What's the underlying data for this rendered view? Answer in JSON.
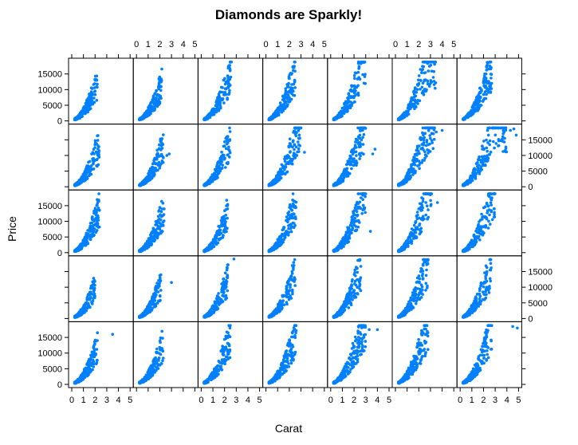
{
  "chart_data": {
    "type": "scatter",
    "title": "Diamonds are Sparkly!",
    "xlabel": "Carat",
    "ylabel": "Price",
    "layout": {
      "columns": 7,
      "rows": 5
    },
    "xlim": [
      0,
      5
    ],
    "ylim": [
      0,
      19000
    ],
    "x_ticks": [
      0,
      1,
      2,
      3,
      4,
      5
    ],
    "y_ticks": [
      0,
      5000,
      10000,
      15000
    ],
    "x_tick_labels": [
      "0",
      "1",
      "2",
      "3",
      "4",
      "5"
    ],
    "y_tick_labels": [
      "0",
      "5000",
      "10000",
      "15000"
    ],
    "point_color": "#0080ff",
    "grid": false,
    "panels": [
      {
        "max_carat": 2.2,
        "outliers": [
          [
            2.0,
            13000
          ]
        ]
      },
      {
        "max_carat": 2.2,
        "outliers": []
      },
      {
        "max_carat": 2.6,
        "outliers": []
      },
      {
        "max_carat": 2.5,
        "outliers": []
      },
      {
        "max_carat": 3.0,
        "outliers": []
      },
      {
        "max_carat": 3.5,
        "outliers": [
          [
            3.1,
            12500
          ]
        ]
      },
      {
        "max_carat": 2.7,
        "outliers": []
      },
      {
        "max_carat": 2.4,
        "outliers": [
          [
            1.8,
            11000
          ]
        ]
      },
      {
        "max_carat": 2.3,
        "outliers": [
          [
            2.8,
            10500
          ],
          [
            2.6,
            10000
          ]
        ]
      },
      {
        "max_carat": 2.5,
        "outliers": []
      },
      {
        "max_carat": 3.0,
        "outliers": [
          [
            3.3,
            11000
          ]
        ]
      },
      {
        "max_carat": 3.0,
        "outliers": [
          [
            3.8,
            12000
          ],
          [
            3.6,
            10500
          ]
        ]
      },
      {
        "max_carat": 3.4,
        "outliers": [
          [
            4.0,
            18000
          ],
          [
            3.5,
            17500
          ]
        ]
      },
      {
        "max_carat": 4.0,
        "outliers": [
          [
            4.6,
            18500
          ],
          [
            4.3,
            18000
          ],
          [
            4.8,
            16500
          ]
        ]
      },
      {
        "max_carat": 2.4,
        "outliers": []
      },
      {
        "max_carat": 2.4,
        "outliers": []
      },
      {
        "max_carat": 2.3,
        "outliers": []
      },
      {
        "max_carat": 2.6,
        "outliers": []
      },
      {
        "max_carat": 3.0,
        "outliers": [
          [
            3.4,
            6800
          ]
        ]
      },
      {
        "max_carat": 3.1,
        "outliers": [
          [
            3.6,
            16000
          ]
        ]
      },
      {
        "max_carat": 3.0,
        "outliers": []
      },
      {
        "max_carat": 2.0,
        "outliers": []
      },
      {
        "max_carat": 2.1,
        "outliers": [
          [
            3.0,
            11500
          ]
        ]
      },
      {
        "max_carat": 2.3,
        "outliers": [
          [
            2.8,
            19000
          ]
        ]
      },
      {
        "max_carat": 2.5,
        "outliers": []
      },
      {
        "max_carat": 2.6,
        "outliers": []
      },
      {
        "max_carat": 2.8,
        "outliers": []
      },
      {
        "max_carat": 2.7,
        "outliers": []
      },
      {
        "max_carat": 2.2,
        "outliers": [
          [
            3.5,
            16000
          ],
          [
            2.2,
            16500
          ]
        ]
      },
      {
        "max_carat": 2.3,
        "outliers": []
      },
      {
        "max_carat": 2.5,
        "outliers": []
      },
      {
        "max_carat": 2.6,
        "outliers": []
      },
      {
        "max_carat": 3.0,
        "outliers": [
          [
            4.0,
            17500
          ],
          [
            3.3,
            17500
          ]
        ]
      },
      {
        "max_carat": 2.8,
        "outliers": []
      },
      {
        "max_carat": 2.7,
        "outliers": [
          [
            4.5,
            18500
          ],
          [
            4.9,
            18000
          ]
        ]
      }
    ]
  }
}
